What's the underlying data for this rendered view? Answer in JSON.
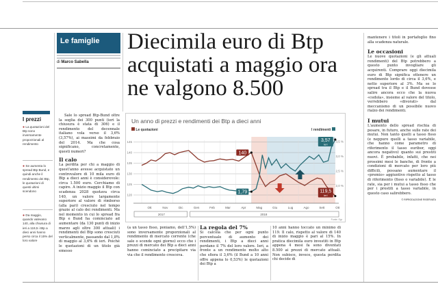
{
  "section": "Le famiglie",
  "byline": {
    "prefix": "di",
    "author": "Marco Sabella"
  },
  "headline": "Diecimila euro di Btp acquistati a maggio ora ne valgono 8.500",
  "sidebar": {
    "title": "I prezzi",
    "items": [
      "La quotazioni del Btp sono inversamente proporzionali al rendimento",
      "Se aumenta lo spread Btp Bund, e quindi anche il rendimento dei Btp, le quotazioni di questi ultimi scendono",
      "Da maggio, quando valevano 140, alla chiusura di ieri a 119,5 i Btp a dieci anni hanno perso circa il 15% del loro valore"
    ]
  },
  "col1": {
    "intro": "Sale lo spread Btp-Bund oltre la soglia dei 300 punti (ieri la chiusura è stata di 306) e il rendimento del decennale italiano vola verso il 3,6% (3,57%), ai massimi da febbraio del 2014. Ma che cosa significano, concretamente, questi numeri?",
    "sub": "Il calo",
    "text": "La perdita per chi a maggio di quest'anno avesse acquistato un controvalore di 10 mila euro di Btp a dieci anni è considerevole: circa 1.500 euro. Cerchiamo di capire. A inizio maggio il Btp con scadenza 2028 quotava circa 140, un valore largamente superiore al valore di rimborso (alla pari) cresciuto nel tempo grazie al calo dei rendimenti. Ma nel momento in cui lo spread fra Btp e Bund ha cominciato ad aumentare (da 130 punti di inizio marzo agli oltre 300 attuali) i rendimenti del Btp sono cresciuti verticalmente, passando dal 1,8% di maggio al 3,6% di ieri. Poiché le quotazioni di un titolo già emesso"
  },
  "col2": {
    "text": "(a un tasso fisso, poniamo, dell'1,5%) sono inversamente proporzionali al rendimento di mercato corrente (che sale o scende ogni giorno) ecco che i prezzi di mercato dei Btp a dieci anni hanno cominciato a precipitare via via che il rendimento cresceva."
  },
  "col3": {
    "sub": "La regola del 7%",
    "text": "Si calcola che per ogni punto percentuale di aumento dei rendimenti, i Btp a dieci anni perdano il 7% del loro valore. Ieri, a fronte a un rendimento molto alto che sfiora il 3,6% (il Bund a 10 anni offre appena lo 0,53%) le quotazioni dei Btp a"
  },
  "col4": {
    "text": "10 anni hanno toccato un minimo di 119. Il calo, rispetto al valore di 140 di inizio maggio è pari al 15%. In pratica diecimila euro investiti in Btp appena 4 mesi fa sono diventati 8.500 ai prezzi di mercato attuali. Non subisce, invece, questa perdita chi decide di"
  },
  "col5": {
    "lead": "mantenere i titoli in portafoglio fino alla scadenza naturale.",
    "sub1": "Le occasioni",
    "text1": "Le nuove quotazioni (e gli attuali rendimenti) del Btp potrebbero a questo punto invogliare gli acquirenti. Comprare oggi diecimila euro di Btp significa ottenere un rendimento lordo di circa il 3,6%, e netto superiore al 3%. Ma se lo spread tra il Btp e il Bund dovesse salire ancora ecco che la nuova «cedola», insieme al valore del titolo, verrebbero «divorati» dal meccanismo di un possibile nuovo rialzo dei rendimenti.",
    "sub2": "I mutui",
    "text2": "L'aumento dello spread rischia di pesare, in futuro, anche sulle rate dei mutui. Non tanto quelli a tasso fisso (e neppure quelli a tasso variabile, che hanno come parametro di riferimento il tasso euribor, oggi ancora negativo) quanto sui prestiti nuovi. È probabile, infatti, che nei prossimi mesi le banche, di fronte a condizioni di mercato per loro più difficili, possano aumentare il «premio» aggiuntivo rispetto al tasso di riferimento (fisso o variabile). E le rate, sia per i mutui a tasso fisso che per i prestiti a tasso variabile, in questo caso salirebbero.",
    "copyright": "© RIPRODUZIONE RISERVATA"
  },
  "chart_data": {
    "type": "line",
    "title": "Un anno di prezzi e rendimenti dei Btp a dieci anni",
    "x_unit": "months since Oct 2017",
    "categories": [
      "Ott",
      "Nov",
      "Dic",
      "Gen",
      "Feb",
      "Mar",
      "Apr",
      "Mag",
      "Giu",
      "Lug",
      "Ago",
      "Sett",
      "Ott"
    ],
    "years": [
      "2017",
      "2018"
    ],
    "left_axis": {
      "ticks": [
        "145",
        "140",
        "135",
        "130",
        "125",
        "120"
      ],
      "ylim": [
        120,
        145
      ]
    },
    "right_axis": {
      "ticks": [
        "3,5 %",
        "3,0 %",
        "2,5 %",
        "2,0 %"
      ],
      "ylim": [
        1.5,
        3.5
      ]
    },
    "series": [
      {
        "name": "Le quotazioni",
        "color": "#8b3a2e",
        "axis": "left",
        "points": [
          [
            0,
            134
          ],
          [
            0.3,
            135
          ],
          [
            0.6,
            136.5
          ],
          [
            0.9,
            136
          ],
          [
            1.2,
            137.5
          ],
          [
            1.5,
            139.5
          ],
          [
            1.8,
            140
          ],
          [
            2.1,
            139
          ],
          [
            2.4,
            140
          ],
          [
            2.7,
            140.5
          ],
          [
            3.0,
            141
          ],
          [
            3.3,
            139
          ],
          [
            3.6,
            137
          ],
          [
            4.0,
            135.5
          ],
          [
            4.3,
            136
          ],
          [
            4.6,
            136.2
          ],
          [
            5.0,
            137
          ],
          [
            5.4,
            136.5
          ],
          [
            5.8,
            136.8
          ],
          [
            6.2,
            136
          ],
          [
            6.6,
            138
          ],
          [
            7.0,
            140
          ],
          [
            7.3,
            134
          ],
          [
            7.6,
            128
          ],
          [
            7.9,
            124
          ],
          [
            8.2,
            126
          ],
          [
            8.5,
            127
          ],
          [
            8.8,
            129
          ],
          [
            9.2,
            130
          ],
          [
            9.6,
            128
          ],
          [
            10.0,
            126
          ],
          [
            10.4,
            124.5
          ],
          [
            10.8,
            126.5
          ],
          [
            11.2,
            128
          ],
          [
            11.5,
            127.5
          ],
          [
            11.8,
            124
          ],
          [
            12.35,
            119.5
          ]
        ]
      },
      {
        "name": "I rendimenti",
        "color": "#2a6e78",
        "axis": "right",
        "points": [
          [
            0,
            2.05
          ],
          [
            0.3,
            1.95
          ],
          [
            0.6,
            1.85
          ],
          [
            1.0,
            1.8
          ],
          [
            1.3,
            1.83
          ],
          [
            1.6,
            1.78
          ],
          [
            2.0,
            1.74
          ],
          [
            2.3,
            1.8
          ],
          [
            2.6,
            1.9
          ],
          [
            3.0,
            1.95
          ],
          [
            3.3,
            1.92
          ],
          [
            3.6,
            2.0
          ],
          [
            4.0,
            1.93
          ],
          [
            4.3,
            1.97
          ],
          [
            4.6,
            1.94
          ],
          [
            5.0,
            1.97
          ],
          [
            5.3,
            1.9
          ],
          [
            5.6,
            1.85
          ],
          [
            6.0,
            1.83
          ],
          [
            6.3,
            1.82
          ],
          [
            6.6,
            1.79
          ],
          [
            7.0,
            1.8
          ],
          [
            7.3,
            1.9
          ],
          [
            7.5,
            2.3
          ],
          [
            7.7,
            3.05
          ],
          [
            7.9,
            2.6
          ],
          [
            8.1,
            2.95
          ],
          [
            8.3,
            2.7
          ],
          [
            8.6,
            2.9
          ],
          [
            8.9,
            2.6
          ],
          [
            9.2,
            2.75
          ],
          [
            9.5,
            2.6
          ],
          [
            9.8,
            2.5
          ],
          [
            10.1,
            2.7
          ],
          [
            10.4,
            2.85
          ],
          [
            10.7,
            3.0
          ],
          [
            11.0,
            2.9
          ],
          [
            11.3,
            3.05
          ],
          [
            11.6,
            2.8
          ],
          [
            11.9,
            2.85
          ],
          [
            12.1,
            3.3
          ],
          [
            12.35,
            3.57
          ]
        ]
      }
    ],
    "annotations": [
      {
        "text": "140",
        "series": "Le quotazioni",
        "x": 7.0
      },
      {
        "text": "1,79",
        "series": "I rendimenti",
        "x": 7.0
      },
      {
        "text": "3,57",
        "sub": "ieri",
        "series": "I rendimenti",
        "x": 12.35
      },
      {
        "text": "119,5",
        "sub": "ieri",
        "series": "Le quotazioni",
        "x": 12.35
      }
    ],
    "source": "Fonte: Sgr"
  }
}
